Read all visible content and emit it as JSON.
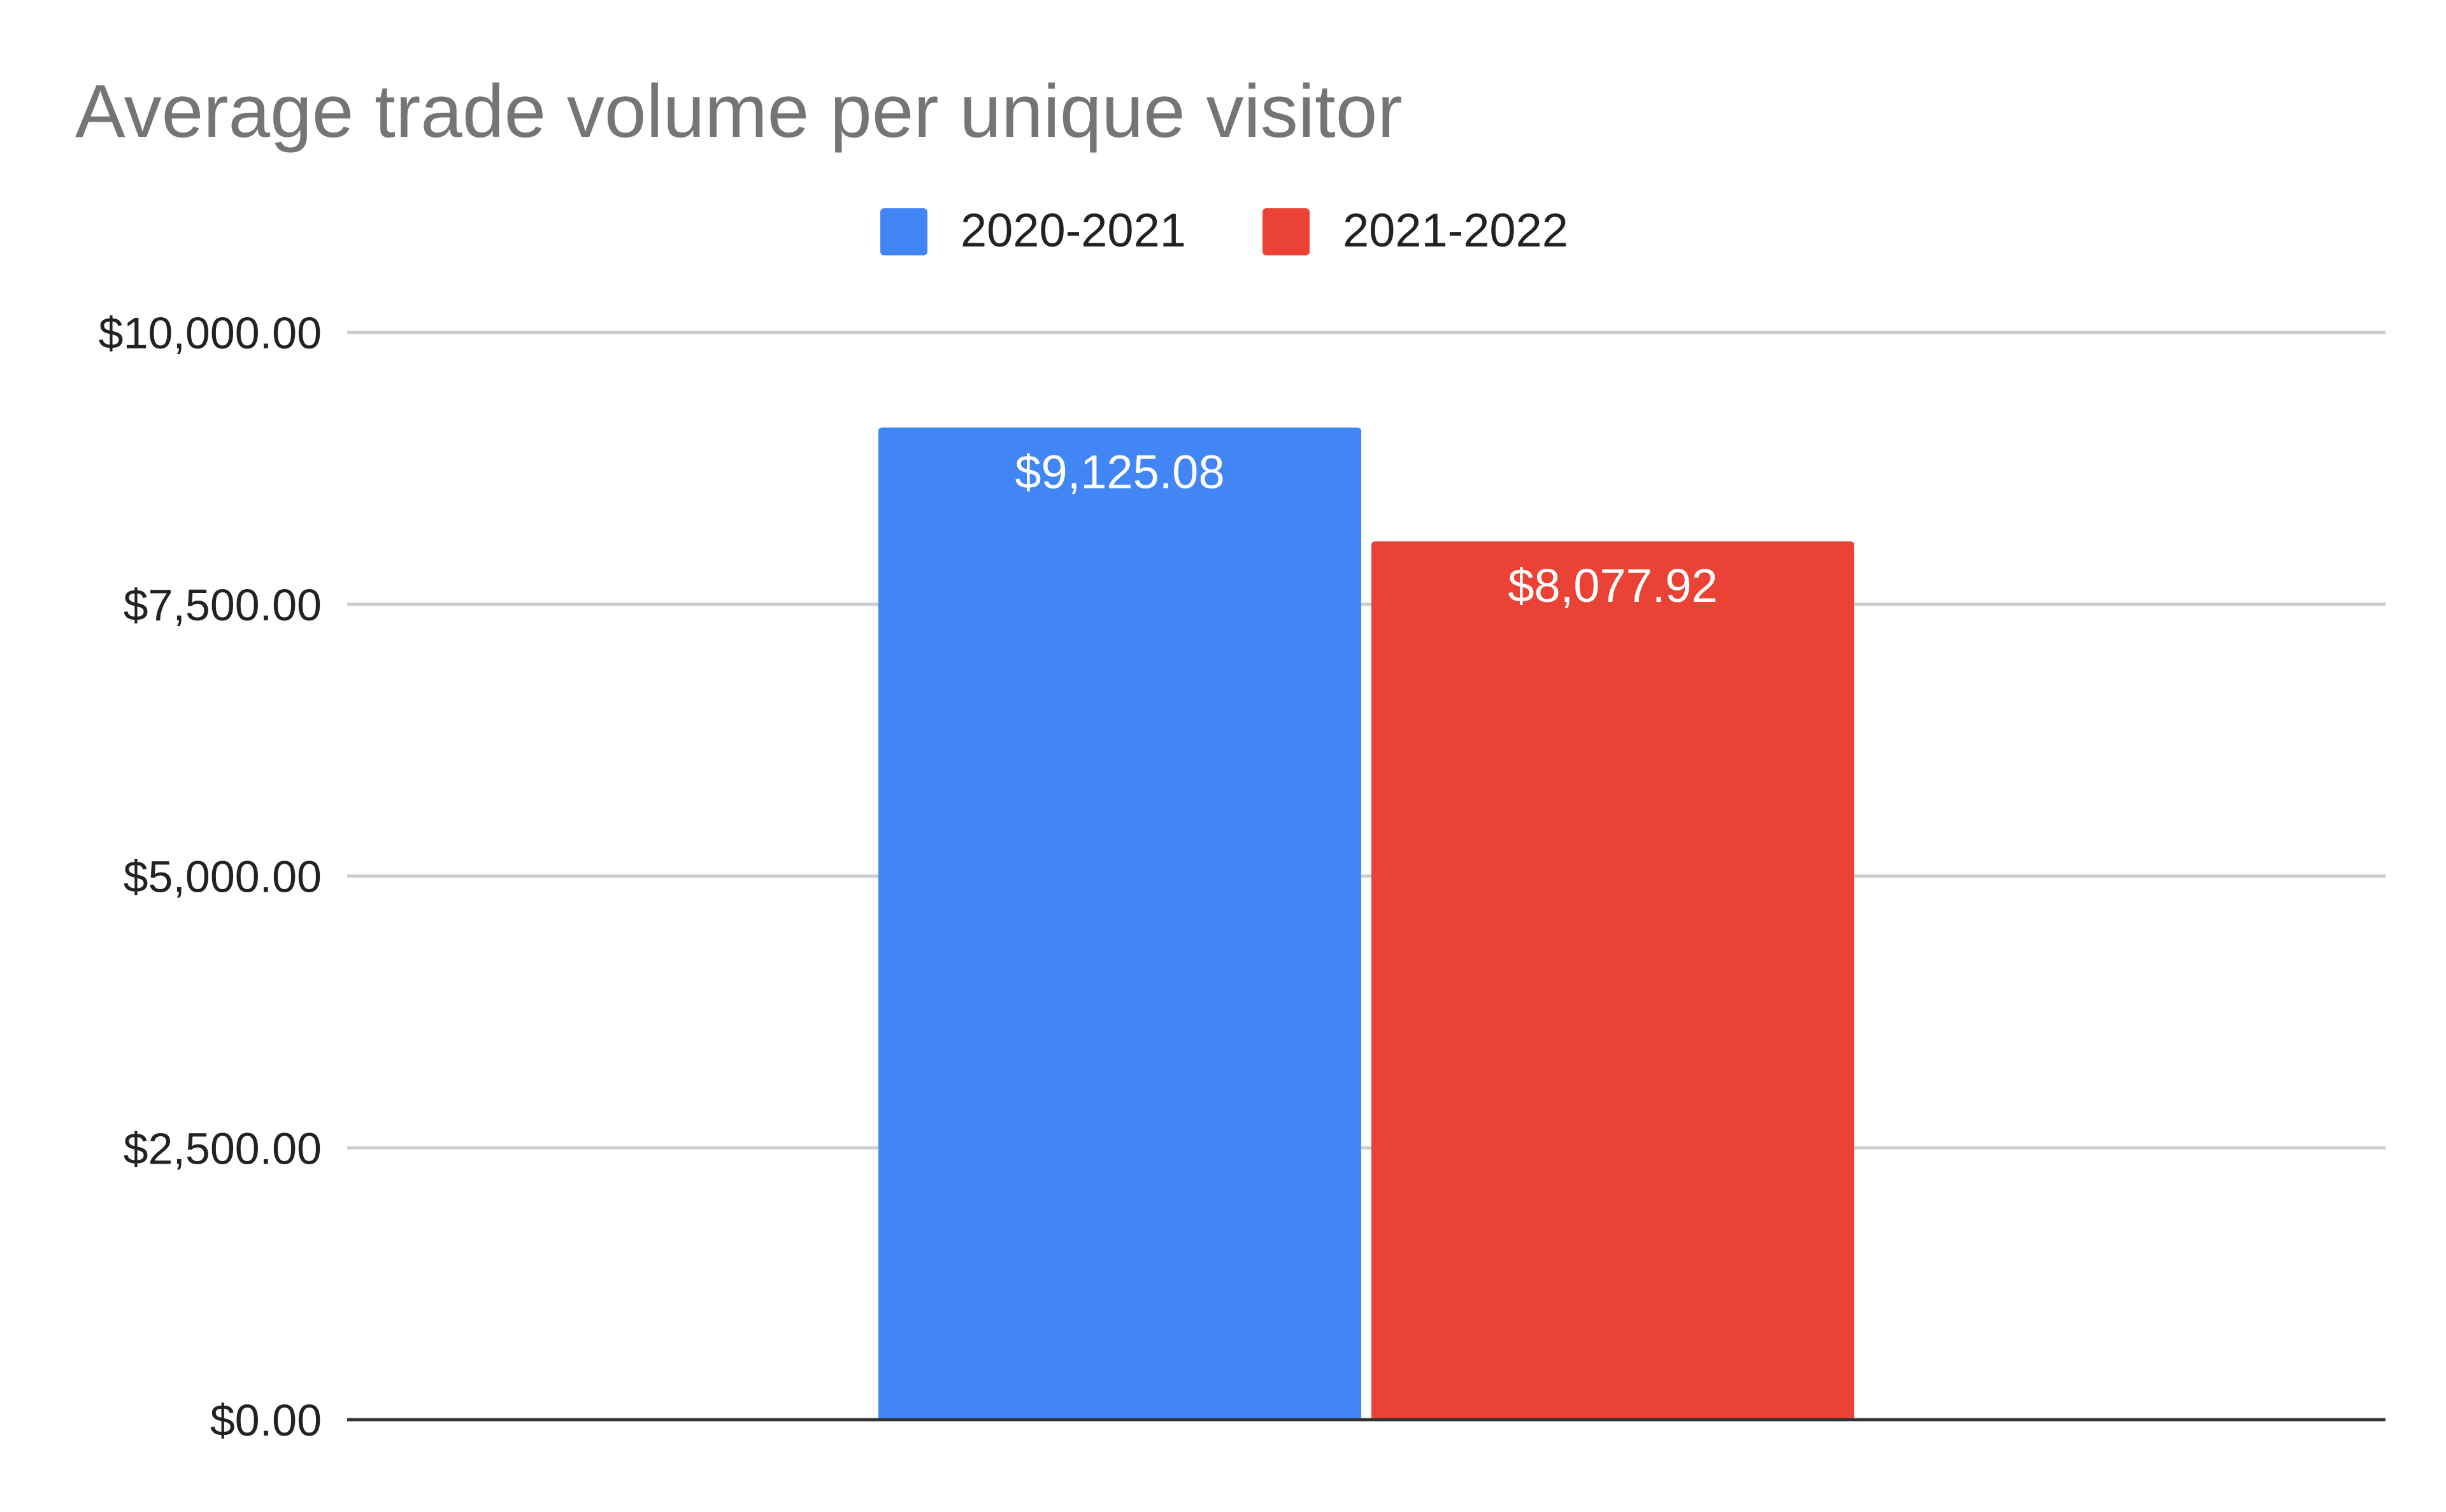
{
  "chart_data": {
    "type": "bar",
    "title": "Average trade volume per unique visitor",
    "xlabel": "",
    "ylabel": "",
    "categories": [
      ""
    ],
    "series": [
      {
        "name": "2020-2021",
        "values": [
          9125.08
        ],
        "value_labels": [
          "$9,125.08"
        ],
        "color": "#4285f4"
      },
      {
        "name": "2021-2022",
        "values": [
          8077.92
        ],
        "value_labels": [
          "$8,077.92"
        ],
        "color": "#ea4335"
      }
    ],
    "ylim": [
      0,
      10000
    ],
    "yticks": [
      0,
      2500,
      5000,
      7500,
      10000
    ],
    "ytick_labels": [
      "$0.00",
      "$2,500.00",
      "$5,000.00",
      "$7,500.00",
      "$10,000.00"
    ],
    "grid": true,
    "legend_position": "top-center"
  }
}
